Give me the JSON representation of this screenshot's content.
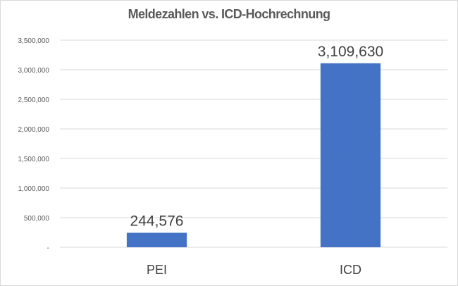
{
  "chart_data": {
    "type": "bar",
    "title": "Meldezahlen vs. ICD-Hochrechnung",
    "xlabel": "",
    "ylabel": "",
    "categories": [
      "PEI",
      "ICD"
    ],
    "values": [
      244576,
      3109630
    ],
    "data_labels": [
      "244,576",
      "3,109,630"
    ],
    "ylim": [
      0,
      3500000
    ],
    "yticks": [
      0,
      500000,
      1000000,
      1500000,
      2000000,
      2500000,
      3000000,
      3500000
    ],
    "ytick_labels": [
      "-",
      "500,000",
      "1,000,000",
      "1,500,000",
      "2,000,000",
      "2,500,000",
      "3,000,000",
      "3,500,000"
    ],
    "grid": true,
    "legend": "none",
    "colors": {
      "bar": "#4472C4",
      "grid": "#d9d9d9",
      "text": "#595959",
      "label": "#404040"
    }
  }
}
